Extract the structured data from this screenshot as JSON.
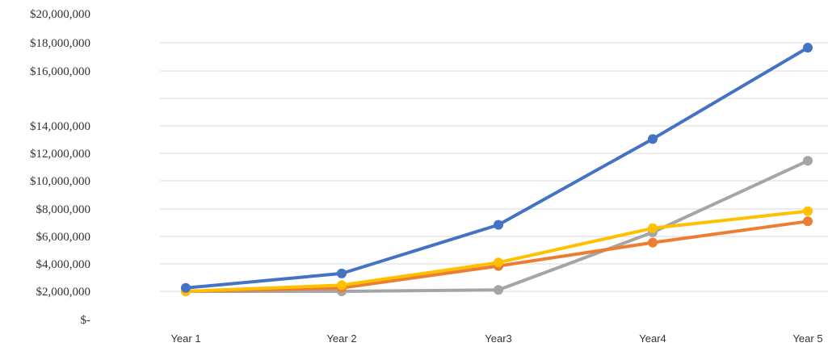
{
  "chart_data": {
    "type": "line",
    "title": "",
    "xlabel": "",
    "ylabel": "",
    "categories": [
      "Year 1",
      "Year 2",
      "Year3",
      "Year4",
      "Year 5"
    ],
    "y_tick_labels": [
      "$20,000,000",
      "$18,000,000",
      "$16,000,000",
      "$14,000,000",
      "$12,000,000",
      "$10,000,000",
      "$8,000,000",
      "$6,000,000",
      "$4,000,000",
      "$2,000,000",
      "$-"
    ],
    "grid": true,
    "legend": "none",
    "series": [
      {
        "color": "#4472c4",
        "values": [
          2250000,
          3300000,
          6850000,
          13050000,
          17650000
        ]
      },
      {
        "color": "#ed7d31",
        "values": [
          2000000,
          2250000,
          3850000,
          5550000,
          7100000
        ]
      },
      {
        "color": "#a5a5a5",
        "values": [
          2000000,
          2000000,
          2100000,
          6300000,
          11450000
        ]
      },
      {
        "color": "#ffc000",
        "values": [
          2000000,
          2450000,
          4100000,
          6600000,
          7850000
        ]
      }
    ]
  }
}
